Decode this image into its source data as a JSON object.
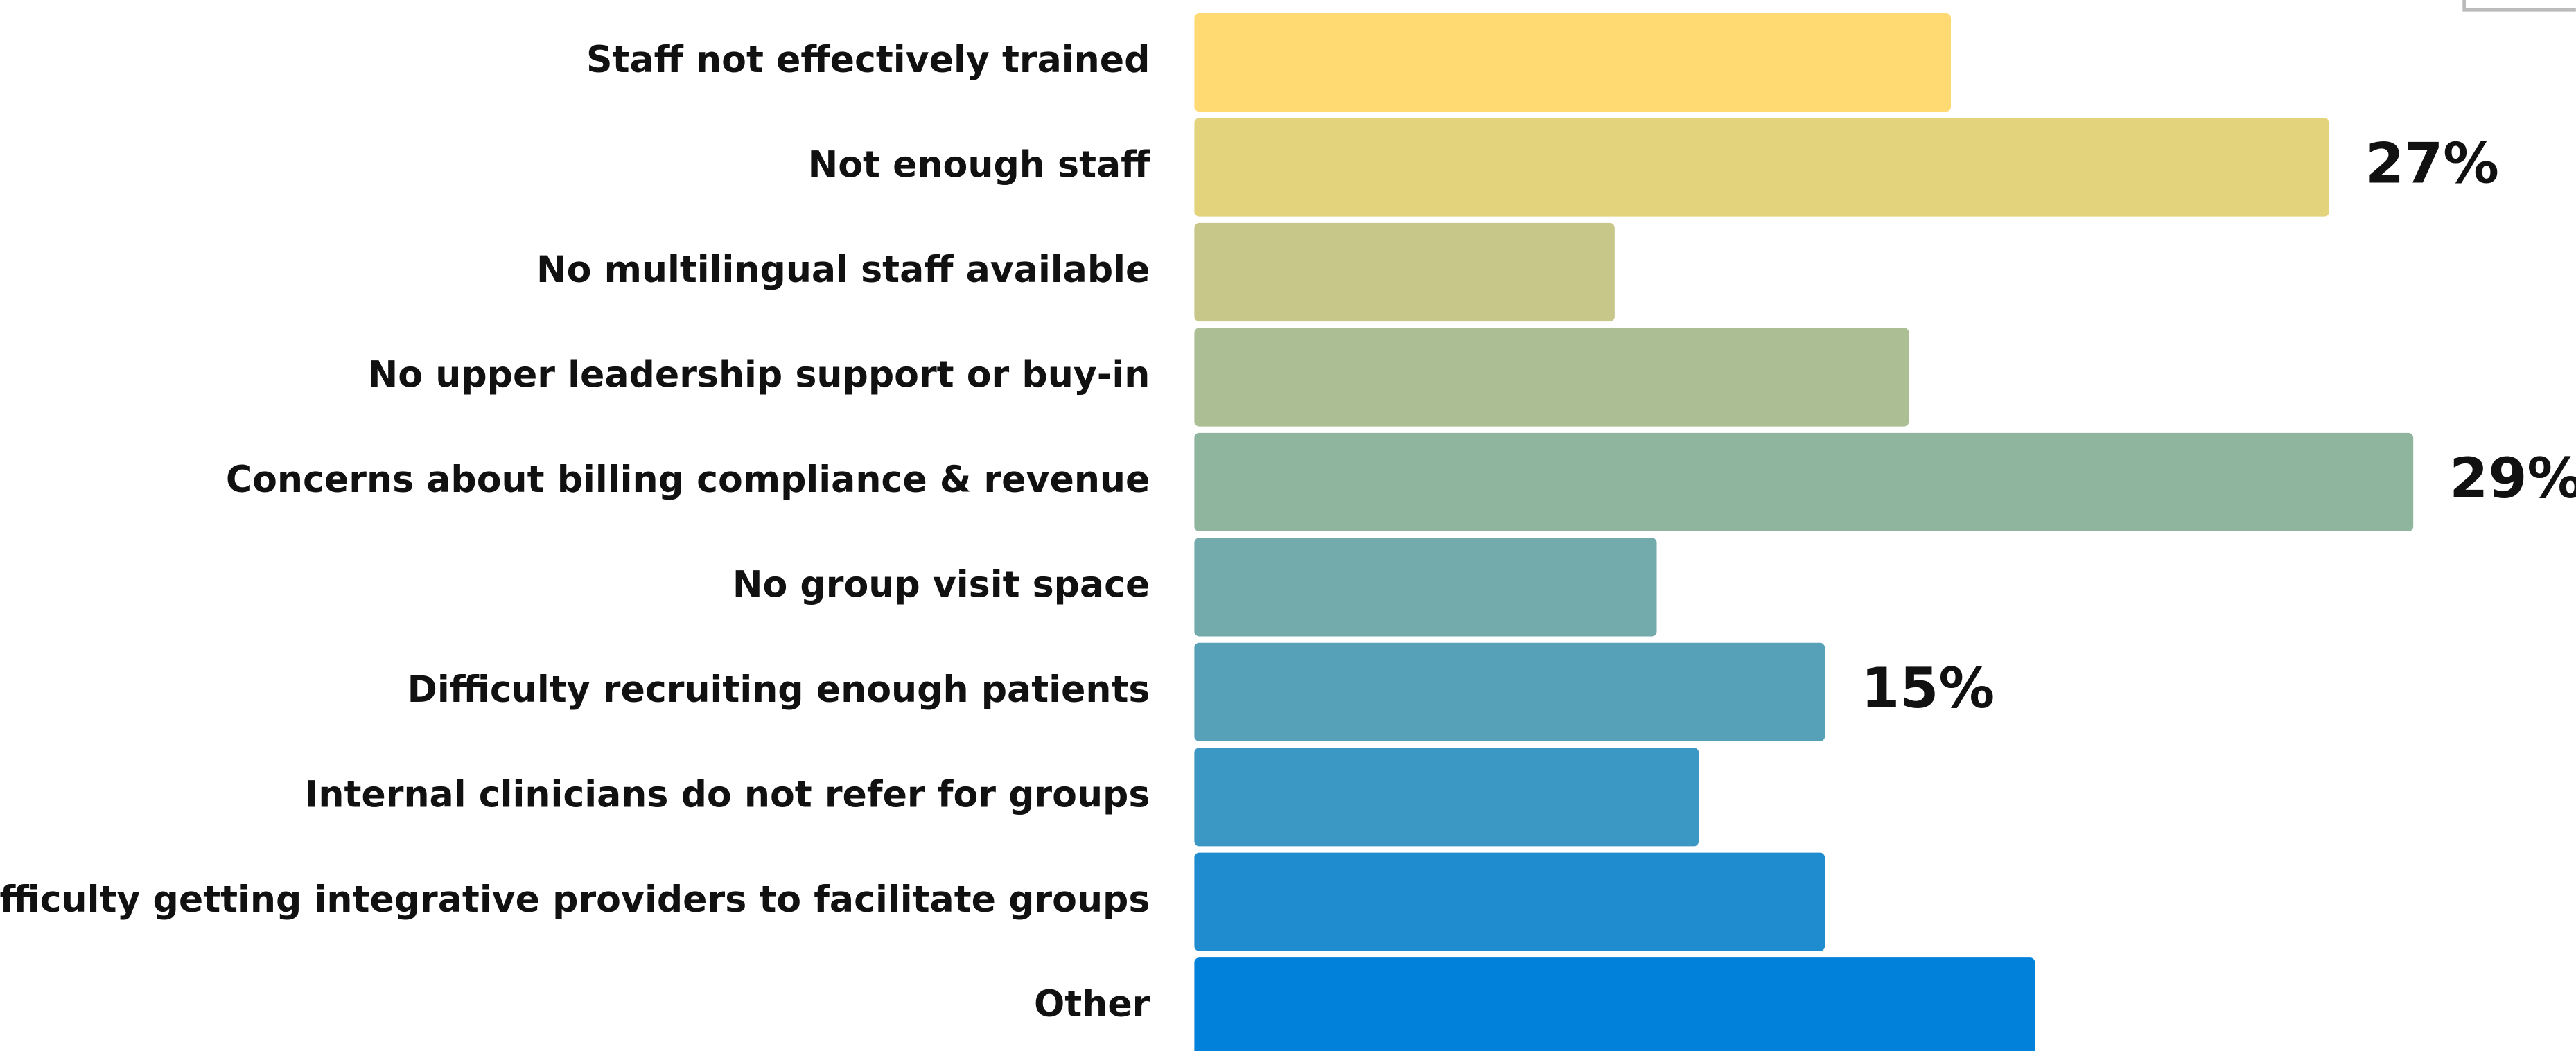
{
  "chart_data": {
    "type": "bar",
    "orientation": "horizontal",
    "categories": [
      "Staff not effectively trained",
      "Not enough staff",
      "No multilingual staff available",
      "No upper leadership support or buy-in",
      "Concerns about billing compliance & revenue",
      "No group visit space",
      "Difficulty recruiting enough patients",
      "Internal clinicians do not refer for groups",
      "Difficulty getting integrative providers to facilitate groups",
      "Other"
    ],
    "values": [
      18,
      27,
      10,
      17,
      29,
      11,
      15,
      12,
      15,
      20
    ],
    "value_labels": [
      null,
      "27%",
      null,
      null,
      "29%",
      null,
      "15%",
      null,
      null,
      null
    ],
    "colors": [
      "#ffd972",
      "#e3d37d",
      "#c8c78a",
      "#abbe94",
      "#8fb59f",
      "#73aaab",
      "#56a1b8",
      "#3b97c4",
      "#1f8ccf",
      "#0281da"
    ]
  }
}
